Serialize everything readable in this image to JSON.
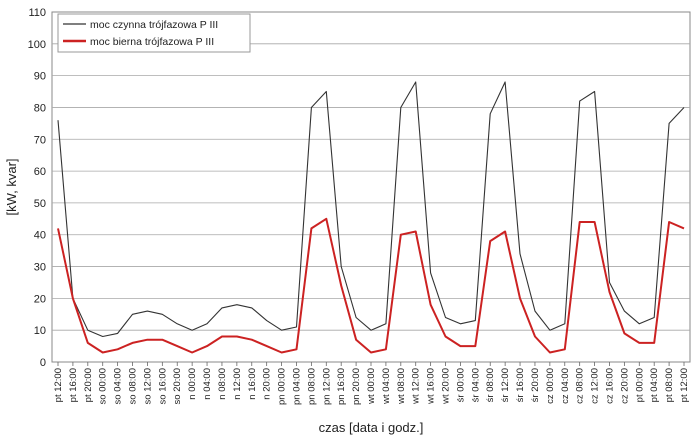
{
  "chart_data": {
    "type": "line",
    "xlabel": "czas [data i godz.]",
    "ylabel": "[kW, kvar]",
    "ylim": [
      0,
      110
    ],
    "yticks": [
      0,
      10,
      20,
      30,
      40,
      50,
      60,
      70,
      80,
      90,
      100,
      110
    ],
    "grid": true,
    "legend_position": "top-left",
    "categories": [
      "pt 12:00",
      "pt 16:00",
      "pt 20:00",
      "so 00:00",
      "so 04:00",
      "so 08:00",
      "so 12:00",
      "so 16:00",
      "so 20:00",
      "n 00:00",
      "n 04:00",
      "n 08:00",
      "n 12:00",
      "n 16:00",
      "n 20:00",
      "pn 00:00",
      "pn 04:00",
      "pn 08:00",
      "pn 12:00",
      "pn 16:00",
      "pn 20:00",
      "wt 00:00",
      "wt 04:00",
      "wt 08:00",
      "wt 12:00",
      "wt 16:00",
      "wt 20:00",
      "śr 00:00",
      "śr 04:00",
      "śr 08:00",
      "śr 12:00",
      "śr 16:00",
      "śr 20:00",
      "cz 00:00",
      "cz 04:00",
      "cz 08:00",
      "cz 12:00",
      "cz 16:00",
      "cz 20:00",
      "pt 00:00",
      "pt 04:00",
      "pt 08:00",
      "pt 12:00"
    ],
    "series": [
      {
        "name": "moc czynna trójfazowa P III",
        "color": "#333333",
        "values": [
          76,
          20,
          10,
          8,
          9,
          15,
          16,
          15,
          12,
          10,
          12,
          17,
          18,
          17,
          13,
          10,
          11,
          80,
          85,
          30,
          14,
          10,
          12,
          80,
          88,
          28,
          14,
          12,
          13,
          78,
          88,
          34,
          16,
          10,
          12,
          82,
          85,
          25,
          16,
          12,
          14,
          75,
          80
        ]
      },
      {
        "name": "moc bierna trójfazowa P III",
        "color": "#cc2222",
        "values": [
          42,
          20,
          6,
          3,
          4,
          6,
          7,
          7,
          5,
          3,
          5,
          8,
          8,
          7,
          5,
          3,
          4,
          42,
          45,
          24,
          7,
          3,
          4,
          40,
          41,
          18,
          8,
          5,
          5,
          38,
          41,
          20,
          8,
          3,
          4,
          44,
          44,
          22,
          9,
          6,
          6,
          44,
          42
        ]
      }
    ]
  }
}
